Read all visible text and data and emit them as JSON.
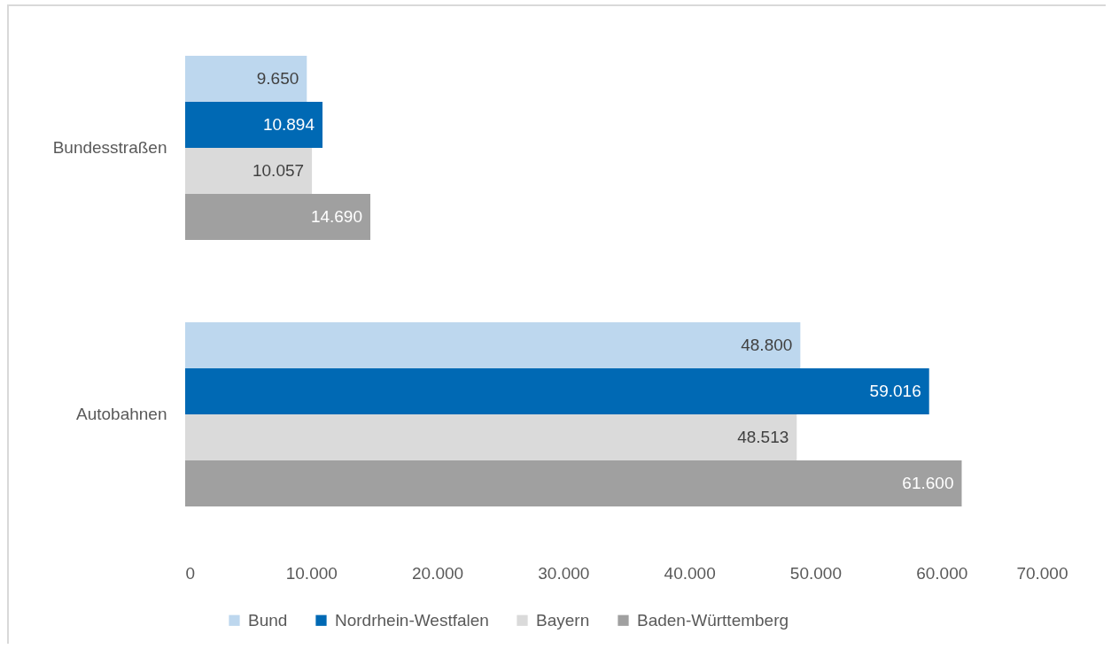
{
  "chart_data": {
    "type": "bar",
    "orientation": "horizontal",
    "categories": [
      "Bundesstraßen",
      "Autobahnen"
    ],
    "series": [
      {
        "name": "Bund",
        "color": "#bdd7ee",
        "values": [
          9650,
          48800
        ],
        "value_labels": [
          "9.650",
          "48.800"
        ]
      },
      {
        "name": "Nordrhein-Westfalen",
        "color": "#0069b4",
        "values": [
          10894,
          59016
        ],
        "value_labels": [
          "10.894",
          "59.016"
        ]
      },
      {
        "name": "Bayern",
        "color": "#dadada",
        "values": [
          10057,
          48513
        ],
        "value_labels": [
          "10.057",
          "48.513"
        ]
      },
      {
        "name": "Baden-Württemberg",
        "color": "#a0a0a0",
        "values": [
          14690,
          61600
        ],
        "value_labels": [
          "14.690",
          "61.600"
        ]
      }
    ],
    "xlim": [
      0,
      70000
    ],
    "xticks": [
      0,
      {
        "value": 10000,
        "label": "10.000"
      },
      {
        "value": 20000,
        "label": "20.000"
      },
      {
        "value": 30000,
        "label": "30.000"
      },
      {
        "value": 40000,
        "label": "40.000"
      },
      {
        "value": 50000,
        "label": "50.000"
      },
      {
        "value": 60000,
        "label": "60.000"
      },
      {
        "value": 70000,
        "label": "70.000"
      }
    ],
    "grid": false,
    "legend": "bottom"
  }
}
